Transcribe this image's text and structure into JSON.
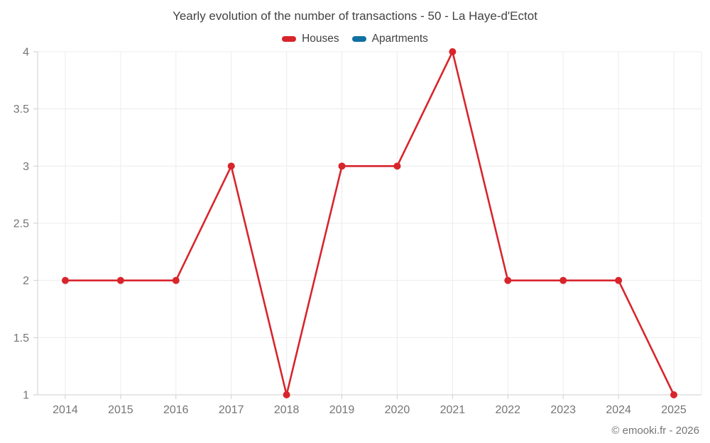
{
  "chart_data": {
    "type": "line",
    "title": "Yearly evolution of the number of transactions - 50 - La Haye-d'Ectot",
    "categories": [
      "2014",
      "2015",
      "2016",
      "2017",
      "2018",
      "2019",
      "2020",
      "2021",
      "2022",
      "2023",
      "2024",
      "2025"
    ],
    "series": [
      {
        "name": "Houses",
        "color": "#d8252c",
        "values": [
          2,
          2,
          2,
          3,
          1,
          3,
          3,
          4,
          2,
          2,
          2,
          1
        ]
      },
      {
        "name": "Apartments",
        "color": "#1170a3",
        "values": []
      }
    ],
    "xlabel": "",
    "ylabel": "",
    "ylim": [
      1,
      4
    ],
    "yticks": [
      1,
      1.5,
      2,
      2.5,
      3,
      3.5,
      4
    ],
    "grid": true,
    "legend_position": "top",
    "marker": "circle"
  },
  "colors": {
    "grid": "#ececec",
    "axis": "#cfcfcf",
    "tick_label": "#757575",
    "title_text": "#424242"
  },
  "footer": {
    "copyright": "© emooki.fr - 2026"
  }
}
